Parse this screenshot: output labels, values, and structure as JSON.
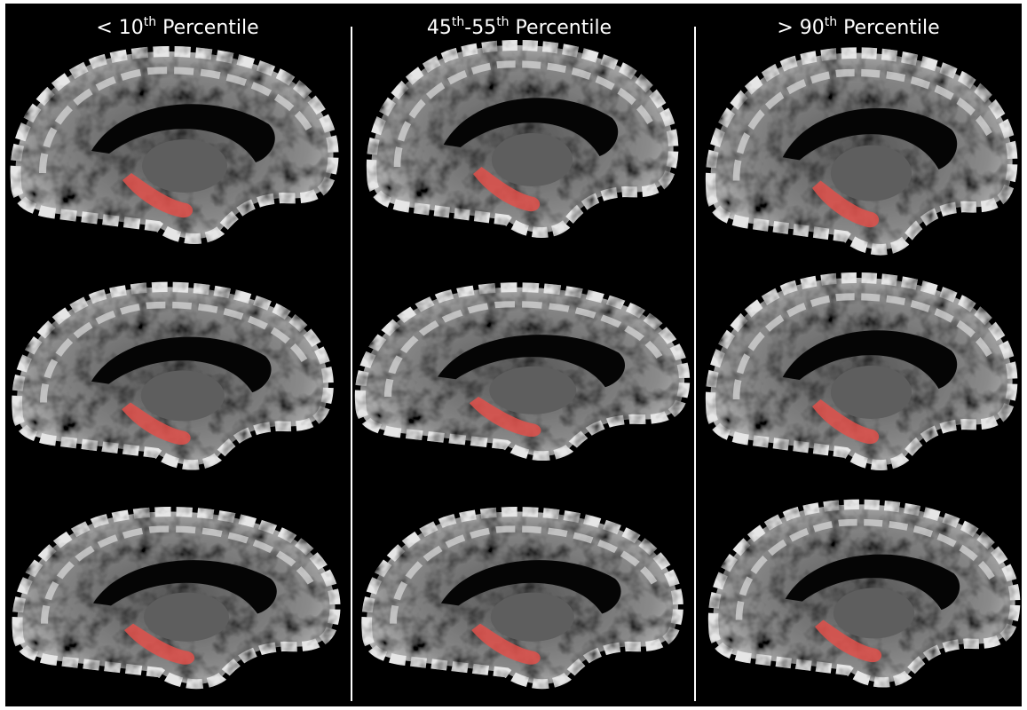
{
  "columns": [
    {
      "title": [
        {
          "text": "< 10"
        },
        {
          "sup": "th"
        },
        {
          "text": " Percentile"
        }
      ]
    },
    {
      "title": [
        {
          "text": "45"
        },
        {
          "sup": "th"
        },
        {
          "text": "-55"
        },
        {
          "sup": "th"
        },
        {
          "text": " Percentile"
        }
      ]
    },
    {
      "title": [
        {
          "text": "> 90"
        },
        {
          "sup": "th"
        },
        {
          "text": " Percentile"
        }
      ]
    }
  ]
}
